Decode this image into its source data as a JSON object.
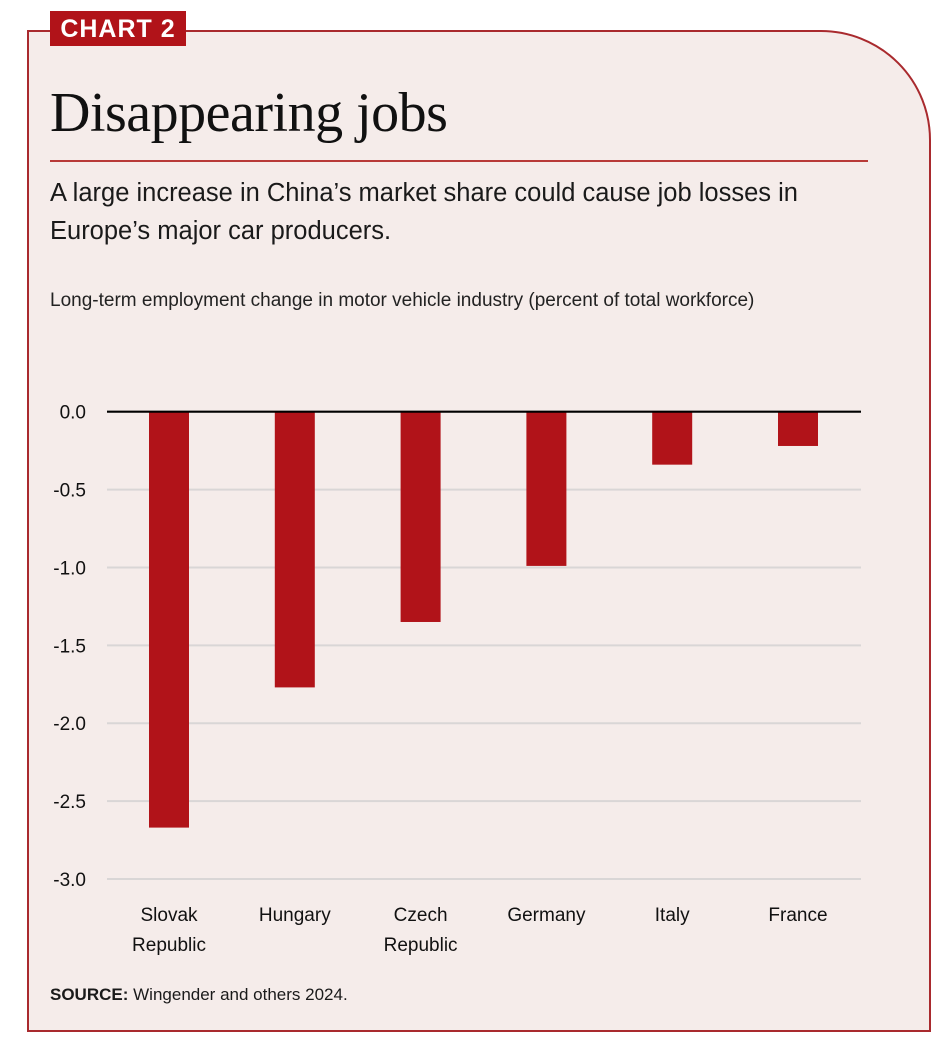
{
  "header": {
    "tag": "CHART 2",
    "title": "Disappearing jobs",
    "subtitle": "A large increase in China’s market share could cause job losses in Europe’s major car producers.",
    "axis_title": "Long-term employment change in motor vehicle industry (percent of total workforce)"
  },
  "footer": {
    "source_label": "SOURCE:",
    "source_text": " Wingender and others 2024."
  },
  "colors": {
    "bar": "#b11319",
    "zero_line": "#000000",
    "grid": "#d9d6d6",
    "accent": "#a92a2e"
  },
  "chart_data": {
    "type": "bar",
    "title": "Disappearing jobs",
    "subtitle": "A large increase in China’s market share could cause job losses in Europe’s major car producers.",
    "xlabel": "",
    "ylabel": "Long-term employment change in motor vehicle industry (percent of total workforce)",
    "categories": [
      [
        "Slovak",
        "Republic"
      ],
      [
        "Hungary"
      ],
      [
        "Czech",
        "Republic"
      ],
      [
        "Germany"
      ],
      [
        "Italy"
      ],
      [
        "France"
      ]
    ],
    "values": [
      -2.67,
      -1.77,
      -1.35,
      -0.99,
      -0.34,
      -0.22
    ],
    "ylim": [
      -3.0,
      0.0
    ],
    "yticks": [
      0.0,
      -0.5,
      -1.0,
      -1.5,
      -2.0,
      -2.5,
      -3.0
    ],
    "ytick_labels": [
      "0.0",
      "-0.5",
      "-1.0",
      "-1.5",
      "-2.0",
      "-2.5",
      "-3.0"
    ],
    "grid": true,
    "legend": "none",
    "source": "SOURCE: Wingender and others 2024."
  }
}
